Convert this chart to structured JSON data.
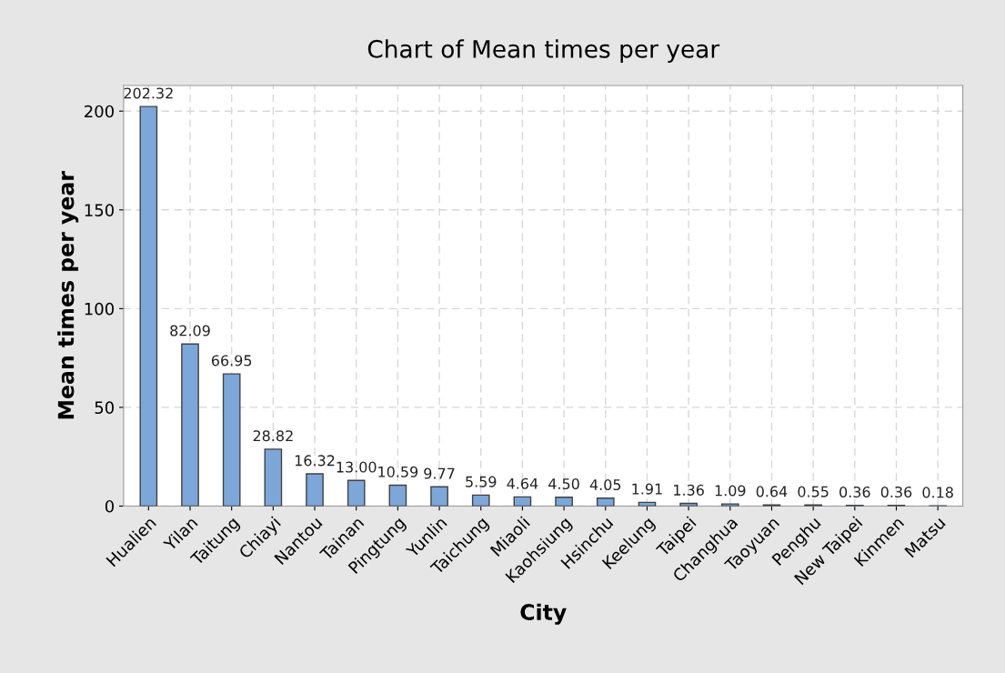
{
  "chart_data": {
    "type": "bar",
    "title": "Chart of Mean times per year",
    "xlabel": "City",
    "ylabel": "Mean times per year",
    "categories": [
      "Hualien",
      "Yilan",
      "Taitung",
      "Chiayi",
      "Nantou",
      "Tainan",
      "Pingtung",
      "Yunlin",
      "Taichung",
      "Miaoli",
      "Kaohsiung",
      "Hsinchu",
      "Keelung",
      "Taipei",
      "Changhua",
      "Taoyuan",
      "Penghu",
      "New Taipei",
      "Kinmen",
      "Matsu"
    ],
    "values": [
      202.32,
      82.09,
      66.95,
      28.82,
      16.32,
      13.0,
      10.59,
      9.77,
      5.59,
      4.64,
      4.5,
      4.05,
      1.91,
      1.36,
      1.09,
      0.64,
      0.55,
      0.36,
      0.36,
      0.18
    ],
    "value_labels": [
      "202.32",
      "82.09",
      "66.95",
      "28.82",
      "16.32",
      "13.00",
      "10.59",
      "9.77",
      "5.59",
      "4.64",
      "4.50",
      "4.05",
      "1.91",
      "1.36",
      "1.09",
      "0.64",
      "0.55",
      "0.36",
      "0.36",
      "0.18"
    ],
    "color": "#7da7d9",
    "ylim": [
      0,
      213
    ],
    "yticks": [
      0,
      50,
      100,
      150,
      200
    ],
    "grid": true
  }
}
